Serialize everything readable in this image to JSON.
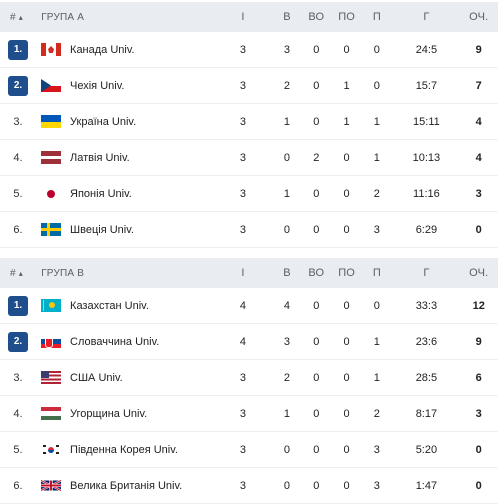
{
  "groups": [
    {
      "header": {
        "hash": "#",
        "sort": "▴",
        "title": "ГРУПА А",
        "i": "І",
        "v": "В",
        "vo": "ВО",
        "po": "ПО",
        "p": "П",
        "g": "Г",
        "o": "ОЧ."
      },
      "rows": [
        {
          "rank": "1.",
          "badge": true,
          "team": "Канада Univ.",
          "flag": "canada",
          "i": "3",
          "v": "3",
          "vo": "0",
          "po": "0",
          "p": "0",
          "g": "24:5",
          "o": "9"
        },
        {
          "rank": "2.",
          "badge": true,
          "team": "Чехія Univ.",
          "flag": "czech",
          "i": "3",
          "v": "2",
          "vo": "0",
          "po": "1",
          "p": "0",
          "g": "15:7",
          "o": "7"
        },
        {
          "rank": "3.",
          "badge": false,
          "team": "Україна Univ.",
          "flag": "ukraine",
          "i": "3",
          "v": "1",
          "vo": "0",
          "po": "1",
          "p": "1",
          "g": "15:11",
          "o": "4"
        },
        {
          "rank": "4.",
          "badge": false,
          "team": "Латвія Univ.",
          "flag": "latvia",
          "i": "3",
          "v": "0",
          "vo": "2",
          "po": "0",
          "p": "1",
          "g": "10:13",
          "o": "4"
        },
        {
          "rank": "5.",
          "badge": false,
          "team": "Японія Univ.",
          "flag": "japan",
          "i": "3",
          "v": "1",
          "vo": "0",
          "po": "0",
          "p": "2",
          "g": "11:16",
          "o": "3"
        },
        {
          "rank": "6.",
          "badge": false,
          "team": "Швеція Univ.",
          "flag": "sweden",
          "i": "3",
          "v": "0",
          "vo": "0",
          "po": "0",
          "p": "3",
          "g": "6:29",
          "o": "0"
        }
      ]
    },
    {
      "header": {
        "hash": "#",
        "sort": "▴",
        "title": "ГРУПА В",
        "i": "І",
        "v": "В",
        "vo": "ВО",
        "po": "ПО",
        "p": "П",
        "g": "Г",
        "o": "ОЧ."
      },
      "rows": [
        {
          "rank": "1.",
          "badge": true,
          "team": "Казахстан Univ.",
          "flag": "kazakhstan",
          "i": "4",
          "v": "4",
          "vo": "0",
          "po": "0",
          "p": "0",
          "g": "33:3",
          "o": "12"
        },
        {
          "rank": "2.",
          "badge": true,
          "team": "Словаччина Univ.",
          "flag": "slovakia",
          "i": "4",
          "v": "3",
          "vo": "0",
          "po": "0",
          "p": "1",
          "g": "23:6",
          "o": "9"
        },
        {
          "rank": "3.",
          "badge": false,
          "team": "США Univ.",
          "flag": "usa",
          "i": "3",
          "v": "2",
          "vo": "0",
          "po": "0",
          "p": "1",
          "g": "28:5",
          "o": "6"
        },
        {
          "rank": "4.",
          "badge": false,
          "team": "Угорщина Univ.",
          "flag": "hungary",
          "i": "3",
          "v": "1",
          "vo": "0",
          "po": "0",
          "p": "2",
          "g": "8:17",
          "o": "3"
        },
        {
          "rank": "5.",
          "badge": false,
          "team": "Південна Корея Univ.",
          "flag": "korea",
          "i": "3",
          "v": "0",
          "vo": "0",
          "po": "0",
          "p": "3",
          "g": "5:20",
          "o": "0"
        },
        {
          "rank": "6.",
          "badge": false,
          "team": "Велика Британія Univ.",
          "flag": "uk",
          "i": "3",
          "v": "0",
          "vo": "0",
          "po": "0",
          "p": "3",
          "g": "1:47",
          "o": "0"
        }
      ]
    }
  ],
  "colors": {
    "badge": "#1f4e8c",
    "header_bg": "#e9ecf1"
  }
}
